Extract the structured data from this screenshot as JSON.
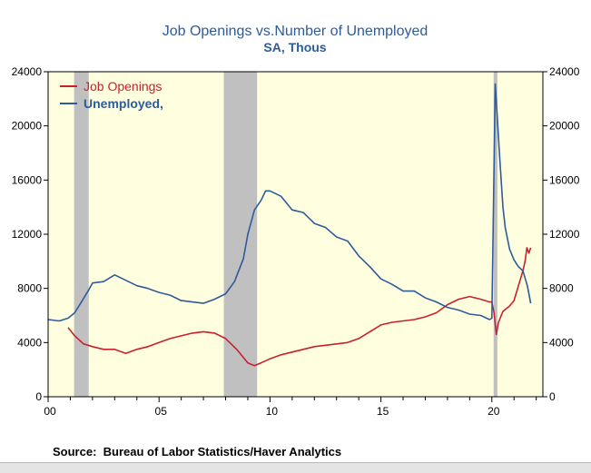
{
  "title": "Job Openings vs.Number of Unemployed",
  "subtitle": "SA, Thous",
  "source": "Source:  Bureau of Labor Statistics/Haver Analytics",
  "chart_data": {
    "type": "line",
    "title": "Job Openings vs.Number of Unemployed",
    "subtitle": "SA, Thous",
    "x_range": [
      2000.0,
      2022.3
    ],
    "ylim": [
      0,
      24000
    ],
    "y_ticks": [
      0,
      4000,
      8000,
      12000,
      16000,
      20000,
      24000
    ],
    "y_tick_labels": [
      "0",
      "4000",
      "8000",
      "12000",
      "16000",
      "20000",
      "24000"
    ],
    "x_ticks": [
      2000,
      2005,
      2010,
      2015,
      2020
    ],
    "x_tick_labels": [
      "00",
      "05",
      "10",
      "15",
      "20"
    ],
    "background_color": "#ffffe0",
    "recession_color": "#c0c0c0",
    "recessions": [
      [
        2001.17,
        2001.83
      ],
      [
        2007.92,
        2009.42
      ],
      [
        2020.08,
        2020.25
      ]
    ],
    "legend_position": "top-left",
    "series": [
      {
        "name": "Job Openings",
        "color": "#c8202f",
        "x": [
          2000.9,
          2001.2,
          2001.6,
          2002.0,
          2002.5,
          2003.0,
          2003.5,
          2004.0,
          2004.5,
          2005.0,
          2005.5,
          2006.0,
          2006.5,
          2007.0,
          2007.5,
          2008.0,
          2008.5,
          2009.0,
          2009.3,
          2009.6,
          2010.0,
          2010.5,
          2011.0,
          2011.5,
          2012.0,
          2012.5,
          2013.0,
          2013.5,
          2014.0,
          2014.5,
          2015.0,
          2015.5,
          2016.0,
          2016.5,
          2017.0,
          2017.5,
          2018.0,
          2018.5,
          2019.0,
          2019.5,
          2019.9,
          2020.0,
          2020.1,
          2020.2,
          2020.3,
          2020.5,
          2020.8,
          2021.0,
          2021.2,
          2021.4,
          2021.5,
          2021.58,
          2021.67,
          2021.75
        ],
        "values": [
          5100,
          4500,
          3900,
          3700,
          3500,
          3500,
          3200,
          3500,
          3700,
          4000,
          4300,
          4500,
          4700,
          4800,
          4700,
          4300,
          3500,
          2500,
          2300,
          2500,
          2800,
          3100,
          3300,
          3500,
          3700,
          3800,
          3900,
          4000,
          4300,
          4800,
          5300,
          5500,
          5600,
          5700,
          5900,
          6200,
          6800,
          7200,
          7400,
          7200,
          7000,
          7000,
          6200,
          4600,
          5500,
          6300,
          6700,
          7100,
          8200,
          9300,
          10000,
          11000,
          10600,
          11000
        ]
      },
      {
        "name": "Unemployed,",
        "color": "#2e5b9a",
        "x": [
          2000.0,
          2000.5,
          2000.9,
          2001.2,
          2001.5,
          2001.8,
          2002.0,
          2002.5,
          2003.0,
          2003.5,
          2004.0,
          2004.5,
          2005.0,
          2005.5,
          2006.0,
          2006.5,
          2007.0,
          2007.5,
          2008.0,
          2008.4,
          2008.8,
          2009.0,
          2009.3,
          2009.6,
          2009.8,
          2010.0,
          2010.5,
          2011.0,
          2011.5,
          2012.0,
          2012.5,
          2013.0,
          2013.5,
          2014.0,
          2014.5,
          2015.0,
          2015.5,
          2016.0,
          2016.5,
          2017.0,
          2017.5,
          2018.0,
          2018.5,
          2019.0,
          2019.5,
          2019.9,
          2020.0,
          2020.15,
          2020.25,
          2020.35,
          2020.5,
          2020.6,
          2020.8,
          2021.0,
          2021.2,
          2021.4,
          2021.6,
          2021.75
        ],
        "values": [
          5700,
          5600,
          5800,
          6200,
          7000,
          7800,
          8400,
          8500,
          9000,
          8600,
          8200,
          8000,
          7700,
          7500,
          7100,
          7000,
          6900,
          7200,
          7600,
          8500,
          10200,
          12000,
          13800,
          14500,
          15200,
          15200,
          14800,
          13800,
          13600,
          12800,
          12500,
          11800,
          11500,
          10400,
          9600,
          8700,
          8300,
          7800,
          7800,
          7300,
          7000,
          6600,
          6400,
          6100,
          6000,
          5700,
          5800,
          23100,
          20500,
          17800,
          14000,
          12500,
          10900,
          10100,
          9600,
          9300,
          8200,
          6900
        ]
      }
    ]
  }
}
